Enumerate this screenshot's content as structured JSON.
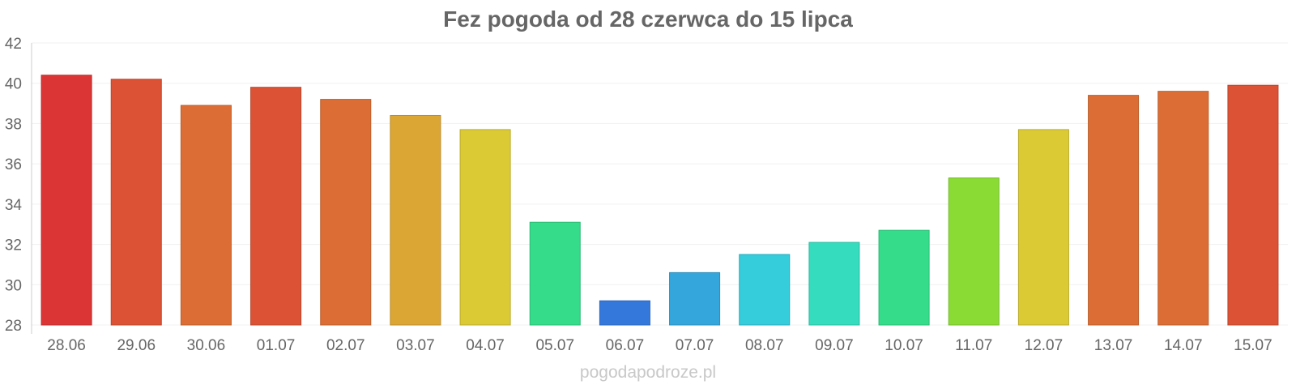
{
  "chart_data": {
    "type": "bar",
    "title": "Fez pogoda od 28 czerwca do 15 lipca",
    "xlabel": "",
    "ylabel": "",
    "ylim": [
      28,
      42
    ],
    "yticks": [
      28,
      30,
      32,
      34,
      36,
      38,
      40,
      42
    ],
    "grid": true,
    "legend": "none",
    "categories": [
      "28.06",
      "29.06",
      "30.06",
      "01.07",
      "02.07",
      "03.07",
      "04.07",
      "05.07",
      "06.07",
      "07.07",
      "08.07",
      "09.07",
      "10.07",
      "11.07",
      "12.07",
      "13.07",
      "14.07",
      "15.07"
    ],
    "values": [
      40.4,
      40.2,
      38.9,
      39.8,
      39.2,
      38.4,
      37.7,
      33.1,
      29.2,
      30.6,
      31.5,
      32.1,
      32.7,
      35.3,
      37.7,
      39.4,
      39.6,
      39.9
    ],
    "colors": [
      "#dc3535",
      "#dc5235",
      "#dc6e35",
      "#dc5235",
      "#dc6e35",
      "#dca635",
      "#dcca35",
      "#35dc8a",
      "#3578dc",
      "#35a6dc",
      "#35ccdc",
      "#35dcbe",
      "#35dc8a",
      "#8adc35",
      "#dcca35",
      "#dc6e35",
      "#dc6e35",
      "#dc5235"
    ]
  },
  "watermark": "pogodapodroze.pl"
}
